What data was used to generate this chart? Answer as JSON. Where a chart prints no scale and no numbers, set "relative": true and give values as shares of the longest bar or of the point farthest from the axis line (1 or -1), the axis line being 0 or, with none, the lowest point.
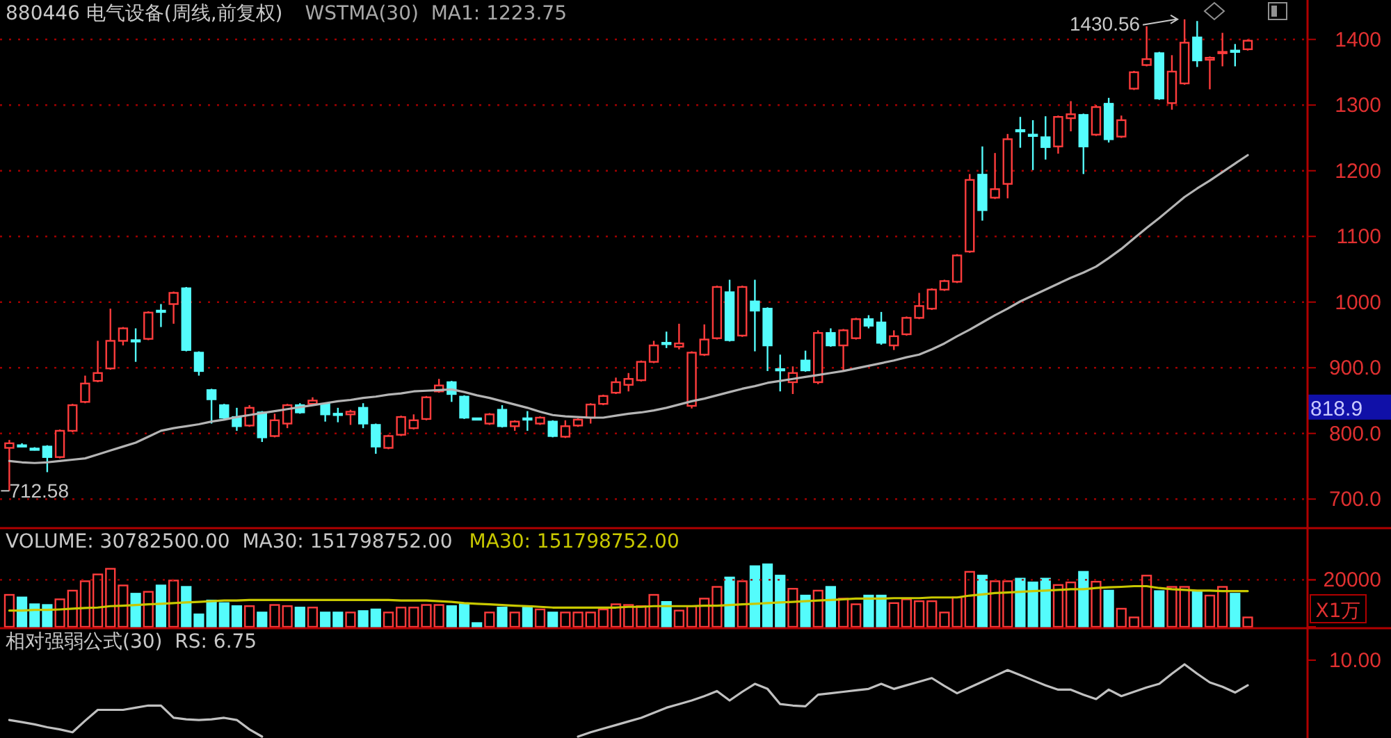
{
  "chart_data": [
    {
      "type": "candlestick",
      "title": "880446 电气设备(周线,前复权)",
      "subtitle": "WSTMA(30)  MA1: 1223.75",
      "ylim": [
        660,
        1460
      ],
      "yticks": [
        {
          "value": 700,
          "label": "700.0"
        },
        {
          "value": 800,
          "label": "800.0"
        },
        {
          "value": 900,
          "label": "900.0"
        },
        1000,
        1100,
        1200,
        1300,
        1400
      ],
      "grid": "y",
      "categories": [
        null,
        null,
        null,
        null,
        null,
        null,
        null,
        null,
        null,
        null,
        null,
        null,
        null,
        null,
        null,
        null,
        null,
        null,
        null,
        null,
        null,
        null,
        null,
        null,
        null,
        null,
        null,
        null,
        null,
        null,
        null,
        null,
        null,
        null,
        null,
        null,
        null,
        null,
        null,
        null,
        null,
        null,
        null,
        null,
        null,
        null,
        null,
        null,
        null,
        null,
        null,
        null,
        null,
        null,
        null,
        null,
        null,
        null,
        null,
        null,
        null,
        null,
        null,
        null,
        null,
        null,
        null,
        null,
        null,
        null,
        null,
        null,
        null,
        null,
        null,
        null,
        null,
        null,
        null,
        null,
        null,
        null,
        null,
        null,
        null,
        null,
        null,
        null,
        null,
        null,
        null,
        null,
        null,
        null,
        null,
        null,
        null,
        null,
        null
      ],
      "ohlc": [
        [
          778,
          790,
          712.58,
          785
        ],
        [
          782,
          785,
          779,
          781
        ],
        [
          777,
          779,
          774,
          776
        ],
        [
          780,
          782,
          741,
          764
        ],
        [
          764,
          806,
          762,
          804
        ],
        [
          804,
          845,
          802,
          843
        ],
        [
          848,
          888,
          846,
          876
        ],
        [
          880,
          941,
          878,
          892
        ],
        [
          899,
          990,
          897,
          941
        ],
        [
          941,
          962,
          934,
          960
        ],
        [
          942,
          960,
          909,
          940
        ],
        [
          944,
          986,
          942,
          984
        ],
        [
          987,
          997,
          962,
          985
        ],
        [
          997,
          1016,
          967,
          1014
        ],
        [
          1021,
          1023,
          925,
          927
        ],
        [
          923,
          925,
          888,
          895
        ],
        [
          866,
          868,
          815,
          852
        ],
        [
          843,
          845,
          820,
          824
        ],
        [
          825,
          839,
          804,
          811
        ],
        [
          812,
          843,
          810,
          839
        ],
        [
          832,
          834,
          787,
          794
        ],
        [
          796,
          830,
          794,
          820
        ],
        [
          815,
          845,
          808,
          843
        ],
        [
          843,
          846,
          830,
          832
        ],
        [
          845,
          855,
          843,
          850
        ],
        [
          845,
          847,
          818,
          829
        ],
        [
          830,
          839,
          817,
          829
        ],
        [
          829,
          836,
          813,
          833
        ],
        [
          839,
          846,
          808,
          815
        ],
        [
          813,
          815,
          769,
          780
        ],
        [
          778,
          798,
          776,
          796
        ],
        [
          798,
          827,
          796,
          825
        ],
        [
          808,
          829,
          806,
          820
        ],
        [
          822,
          857,
          820,
          855
        ],
        [
          864,
          883,
          862,
          873
        ],
        [
          878,
          880,
          848,
          860
        ],
        [
          856,
          858,
          822,
          824
        ],
        [
          823,
          824,
          821,
          822
        ],
        [
          815,
          831,
          813,
          829
        ],
        [
          836,
          843,
          809,
          811
        ],
        [
          811,
          820,
          804,
          818
        ],
        [
          823,
          834,
          804,
          822
        ],
        [
          815,
          826,
          813,
          824
        ],
        [
          818,
          820,
          794,
          796
        ],
        [
          795,
          820,
          793,
          811
        ],
        [
          812,
          823,
          810,
          821
        ],
        [
          824,
          846,
          815,
          844
        ],
        [
          845,
          859,
          843,
          857
        ],
        [
          862,
          885,
          860,
          878
        ],
        [
          874,
          892,
          864,
          883
        ],
        [
          881,
          911,
          879,
          909
        ],
        [
          909,
          941,
          907,
          934
        ],
        [
          938,
          955,
          930,
          936
        ],
        [
          932,
          967,
          928,
          937
        ],
        [
          842,
          925,
          838,
          923
        ],
        [
          920,
          966,
          918,
          943
        ],
        [
          945,
          1025,
          943,
          1023
        ],
        [
          1015,
          1034,
          940,
          942
        ],
        [
          949,
          1025,
          947,
          1023
        ],
        [
          1001,
          1034,
          925,
          987
        ],
        [
          990,
          992,
          895,
          934
        ],
        [
          898,
          920,
          864,
          896
        ],
        [
          878,
          902,
          860,
          892
        ],
        [
          911,
          926,
          894,
          896
        ],
        [
          878,
          957,
          875,
          953
        ],
        [
          953,
          960,
          932,
          934
        ],
        [
          934,
          959,
          895,
          957
        ],
        [
          945,
          976,
          943,
          974
        ],
        [
          974,
          980,
          960,
          964
        ],
        [
          969,
          985,
          935,
          938
        ],
        [
          934,
          957,
          927,
          948
        ],
        [
          951,
          978,
          949,
          976
        ],
        [
          976,
          1014,
          974,
          994
        ],
        [
          990,
          1021,
          988,
          1019
        ],
        [
          1019,
          1034,
          1017,
          1032
        ],
        [
          1031,
          1073,
          1029,
          1071
        ],
        [
          1077,
          1195,
          1075,
          1186
        ],
        [
          1194,
          1237,
          1124,
          1140
        ],
        [
          1159,
          1227,
          1157,
          1172
        ],
        [
          1180,
          1256,
          1158,
          1248
        ],
        [
          1262,
          1282,
          1235,
          1260
        ],
        [
          1255,
          1277,
          1201,
          1253
        ],
        [
          1251,
          1283,
          1217,
          1236
        ],
        [
          1237,
          1284,
          1226,
          1282
        ],
        [
          1280,
          1306,
          1260,
          1286
        ],
        [
          1285,
          1287,
          1195,
          1237
        ],
        [
          1255,
          1300,
          1253,
          1297
        ],
        [
          1302,
          1311,
          1243,
          1248
        ],
        [
          1252,
          1284,
          1250,
          1277
        ],
        [
          1325,
          1352,
          1323,
          1350
        ],
        [
          1361,
          1420,
          1359,
          1370
        ],
        [
          1379,
          1381,
          1308,
          1310
        ],
        [
          1303,
          1376,
          1293,
          1351
        ],
        [
          1333,
          1430.56,
          1331,
          1395
        ],
        [
          1403,
          1428,
          1358,
          1368
        ],
        [
          1369,
          1374,
          1324,
          1372
        ],
        [
          1379,
          1410,
          1359,
          1381
        ],
        [
          1383,
          1393,
          1359,
          1381
        ],
        [
          1385,
          1400,
          1383,
          1398
        ]
      ],
      "colors": [
        "#ff3c3c",
        "#54fcfc",
        "#54fcfc",
        "#54fcfc",
        "#ff3c3c",
        "#ff3c3c",
        "#ff3c3c",
        "#ff3c3c",
        "#ff3c3c",
        "#ff3c3c",
        "#54fcfc",
        "#ff3c3c",
        "#54fcfc",
        "#ff3c3c",
        "#54fcfc",
        "#54fcfc",
        "#54fcfc",
        "#54fcfc",
        "#54fcfc",
        "#ff3c3c",
        "#54fcfc",
        "#ff3c3c",
        "#ff3c3c",
        "#54fcfc",
        "#ff3c3c",
        "#54fcfc",
        "#54fcfc",
        "#ff3c3c",
        "#54fcfc",
        "#54fcfc",
        "#ff3c3c",
        "#ff3c3c",
        "#ff3c3c",
        "#ff3c3c",
        "#ff3c3c",
        "#54fcfc",
        "#54fcfc",
        "#54fcfc",
        "#ff3c3c",
        "#54fcfc",
        "#ff3c3c",
        "#54fcfc",
        "#ff3c3c",
        "#54fcfc",
        "#ff3c3c",
        "#ff3c3c",
        "#ff3c3c",
        "#ff3c3c",
        "#ff3c3c",
        "#ff3c3c",
        "#ff3c3c",
        "#ff3c3c",
        "#54fcfc",
        "#ff3c3c",
        "#ff3c3c",
        "#ff3c3c",
        "#ff3c3c",
        "#54fcfc",
        "#ff3c3c",
        "#54fcfc",
        "#54fcfc",
        "#54fcfc",
        "#ff3c3c",
        "#54fcfc",
        "#ff3c3c",
        "#54fcfc",
        "#ff3c3c",
        "#ff3c3c",
        "#54fcfc",
        "#54fcfc",
        "#ff3c3c",
        "#ff3c3c",
        "#ff3c3c",
        "#ff3c3c",
        "#ff3c3c",
        "#ff3c3c",
        "#ff3c3c",
        "#54fcfc",
        "#ff3c3c",
        "#ff3c3c",
        "#54fcfc",
        "#54fcfc",
        "#54fcfc",
        "#ff3c3c",
        "#ff3c3c",
        "#54fcfc",
        "#ff3c3c",
        "#54fcfc",
        "#ff3c3c",
        "#ff3c3c",
        "#ff3c3c",
        "#54fcfc",
        "#ff3c3c",
        "#ff3c3c",
        "#54fcfc",
        "#ff3c3c",
        "#ff3c3c",
        "#54fcfc",
        "#ff3c3c"
      ],
      "series": [
        {
          "type": "line",
          "color": "#b4b4b4",
          "values": [
            758,
            756,
            755,
            756,
            758,
            760,
            762,
            768,
            774,
            780,
            786,
            795,
            804,
            808,
            811,
            814,
            818,
            821,
            825,
            828,
            831,
            834,
            837,
            840,
            843,
            846,
            849,
            851,
            854,
            856,
            859,
            861,
            864,
            865,
            866,
            867,
            863,
            858,
            854,
            849,
            844,
            839,
            833,
            828,
            826,
            825,
            824,
            824,
            827,
            830,
            832,
            835,
            839,
            844,
            849,
            853,
            858,
            863,
            868,
            872,
            877,
            880,
            883,
            886,
            889,
            892,
            895,
            899,
            903,
            907,
            911,
            916,
            920,
            928,
            937,
            948,
            958,
            969,
            980,
            990,
            1001,
            1010,
            1019,
            1028,
            1037,
            1045,
            1054,
            1067,
            1081,
            1097,
            1113,
            1128,
            1144,
            1160,
            1173,
            1185,
            1198,
            1211,
            1223.75
          ]
        }
      ],
      "annotations": [
        "1430.56",
        "712.58",
        "818.9"
      ]
    },
    {
      "type": "bar",
      "title": "VOLUME: 30782500.00  MA30: 151798752.00",
      "legend": "top",
      "ylim": [
        0,
        42000
      ],
      "yticks": [
        {
          "value": 0,
          "label": null
        },
        20000
      ],
      "ref_lines": [
        {
          "axis": "y",
          "value": 20000,
          "line_style": "dotted",
          "color": "#a00000"
        }
      ],
      "categories": [
        null,
        null,
        null,
        null,
        null,
        null,
        null,
        null,
        null,
        null,
        null,
        null,
        null,
        null,
        null,
        null,
        null,
        null,
        null,
        null,
        null,
        null,
        null,
        null,
        null,
        null,
        null,
        null,
        null,
        null,
        null,
        null,
        null,
        null,
        null,
        null,
        null,
        null,
        null,
        null,
        null,
        null,
        null,
        null,
        null,
        null,
        null,
        null,
        null,
        null,
        null,
        null,
        null,
        null,
        null,
        null,
        null,
        null,
        null,
        null,
        null,
        null,
        null,
        null,
        null,
        null,
        null,
        null,
        null,
        null,
        null,
        null,
        null,
        null,
        null,
        null,
        null,
        null,
        null,
        null,
        null,
        null,
        null,
        null,
        null,
        null,
        null,
        null,
        null,
        null,
        null,
        null,
        null,
        null,
        null,
        null,
        null,
        null,
        null
      ],
      "values": [
        13600,
        12500,
        9600,
        9300,
        11700,
        15400,
        19400,
        22300,
        24700,
        17600,
        14100,
        14900,
        17600,
        19700,
        17000,
        5300,
        11200,
        10100,
        8800,
        8800,
        6100,
        9300,
        8800,
        8200,
        8200,
        6100,
        6100,
        6100,
        6700,
        7400,
        6100,
        8200,
        8200,
        9300,
        9300,
        8800,
        9600,
        1600,
        6100,
        8200,
        6100,
        8200,
        7400,
        6100,
        6100,
        6100,
        6100,
        7400,
        9600,
        9300,
        8800,
        13600,
        10600,
        6900,
        8800,
        12000,
        17000,
        21000,
        19400,
        25800,
        26600,
        21800,
        16200,
        13300,
        15400,
        17000,
        12000,
        9600,
        13300,
        13300,
        10100,
        11700,
        10900,
        10900,
        6100,
        12500,
        23400,
        21800,
        19400,
        19400,
        20500,
        18900,
        20500,
        17800,
        18900,
        23400,
        19200,
        15400,
        7700,
        4000,
        21800,
        15200,
        17000,
        17000,
        15200,
        13300,
        17000,
        14100,
        4000
      ],
      "colors": [
        "#ff3c3c",
        "#54fcfc",
        "#54fcfc",
        "#54fcfc",
        "#ff3c3c",
        "#ff3c3c",
        "#ff3c3c",
        "#ff3c3c",
        "#ff3c3c",
        "#ff3c3c",
        "#54fcfc",
        "#ff3c3c",
        "#54fcfc",
        "#ff3c3c",
        "#54fcfc",
        "#54fcfc",
        "#54fcfc",
        "#54fcfc",
        "#54fcfc",
        "#ff3c3c",
        "#54fcfc",
        "#ff3c3c",
        "#ff3c3c",
        "#54fcfc",
        "#ff3c3c",
        "#54fcfc",
        "#54fcfc",
        "#ff3c3c",
        "#54fcfc",
        "#54fcfc",
        "#ff3c3c",
        "#ff3c3c",
        "#ff3c3c",
        "#ff3c3c",
        "#ff3c3c",
        "#54fcfc",
        "#54fcfc",
        "#54fcfc",
        "#ff3c3c",
        "#54fcfc",
        "#ff3c3c",
        "#54fcfc",
        "#ff3c3c",
        "#54fcfc",
        "#ff3c3c",
        "#ff3c3c",
        "#ff3c3c",
        "#ff3c3c",
        "#ff3c3c",
        "#ff3c3c",
        "#ff3c3c",
        "#ff3c3c",
        "#54fcfc",
        "#ff3c3c",
        "#ff3c3c",
        "#ff3c3c",
        "#ff3c3c",
        "#54fcfc",
        "#ff3c3c",
        "#54fcfc",
        "#54fcfc",
        "#54fcfc",
        "#ff3c3c",
        "#54fcfc",
        "#ff3c3c",
        "#54fcfc",
        "#ff3c3c",
        "#ff3c3c",
        "#54fcfc",
        "#54fcfc",
        "#ff3c3c",
        "#ff3c3c",
        "#ff3c3c",
        "#ff3c3c",
        "#ff3c3c",
        "#ff3c3c",
        "#ff3c3c",
        "#54fcfc",
        "#ff3c3c",
        "#ff3c3c",
        "#54fcfc",
        "#54fcfc",
        "#54fcfc",
        "#ff3c3c",
        "#ff3c3c",
        "#54fcfc",
        "#ff3c3c",
        "#54fcfc",
        "#ff3c3c",
        "#ff3c3c",
        "#ff3c3c",
        "#54fcfc",
        "#ff3c3c",
        "#ff3c3c",
        "#54fcfc",
        "#ff3c3c",
        "#ff3c3c",
        "#54fcfc",
        "#ff3c3c"
      ],
      "series": [
        {
          "type": "line",
          "name": "MA30: 151798752.00",
          "color": "#c8c800",
          "values": [
            6900,
            6900,
            7200,
            7200,
            7400,
            7700,
            8000,
            8200,
            8800,
            9000,
            9300,
            9600,
            9800,
            10100,
            10400,
            10600,
            10900,
            11200,
            11200,
            11400,
            11400,
            11400,
            11400,
            11400,
            11400,
            11400,
            11400,
            11400,
            11400,
            11400,
            11400,
            11200,
            11200,
            11200,
            10900,
            10600,
            10100,
            9800,
            9600,
            9300,
            9000,
            8800,
            8500,
            8200,
            8200,
            8200,
            8200,
            8200,
            8200,
            8500,
            8500,
            8800,
            8800,
            8800,
            8800,
            9000,
            9000,
            9300,
            9600,
            9800,
            10100,
            10400,
            10600,
            10900,
            11200,
            11400,
            11700,
            12000,
            12000,
            12000,
            12200,
            12200,
            12200,
            12500,
            12500,
            12500,
            13300,
            13800,
            14400,
            14600,
            14900,
            15200,
            15400,
            15700,
            16000,
            16000,
            16500,
            16800,
            17000,
            17300,
            17300,
            16500,
            16000,
            15700,
            15400,
            15400,
            15200,
            15200,
            15200
          ]
        }
      ],
      "annotations": [
        "X1万"
      ]
    },
    {
      "type": "line",
      "relative": true,
      "title": "相对强弱公式(30)  RS: 6.75",
      "categories": [
        null,
        null,
        null,
        null,
        null,
        null,
        null,
        null,
        null,
        null,
        null,
        null,
        null,
        null,
        null,
        null,
        null,
        null,
        null,
        null,
        null,
        null,
        null,
        null,
        null,
        null,
        null,
        null,
        null,
        null,
        null,
        null,
        null,
        null,
        null,
        null,
        null,
        null,
        null,
        null,
        null,
        null,
        null,
        null,
        null,
        null,
        null,
        null,
        null,
        null,
        null,
        null,
        null,
        null,
        null,
        null,
        null,
        null,
        null,
        null,
        null,
        null,
        null,
        null,
        null,
        null,
        null,
        null,
        null,
        null,
        null,
        null,
        null,
        null,
        null,
        null,
        null,
        null,
        null,
        null,
        null,
        null,
        null,
        null,
        null,
        null,
        null,
        null,
        null,
        null,
        null,
        null,
        null,
        null,
        null,
        null,
        null,
        null,
        null
      ],
      "series": [
        {
          "color": "#c0c0c0",
          "values": [
            0.23,
            0.2,
            0.17,
            0.13,
            0.1,
            0.06,
            0.22,
            0.37,
            0.37,
            0.37,
            0.4,
            0.43,
            0.43,
            0.26,
            0.24,
            0.23,
            0.24,
            0.26,
            0.23,
            0.1,
            0,
            null,
            null,
            null,
            null,
            null,
            null,
            null,
            null,
            null,
            null,
            null,
            null,
            null,
            null,
            null,
            null,
            null,
            null,
            null,
            null,
            null,
            null,
            null,
            null,
            0,
            0.06,
            0.11,
            0.16,
            0.21,
            0.26,
            0.33,
            0.4,
            0.45,
            0.5,
            0.56,
            0.63,
            0.5,
            0.62,
            0.73,
            0.66,
            0.45,
            0.43,
            0.42,
            0.58,
            0.6,
            0.62,
            0.64,
            0.66,
            0.73,
            0.66,
            0.71,
            0.76,
            0.81,
            0.7,
            0.6,
            0.68,
            0.76,
            0.84,
            0.92,
            0.85,
            0.78,
            0.71,
            0.65,
            0.65,
            0.58,
            0.52,
            0.65,
            0.56,
            0.62,
            0.68,
            0.73,
            0.87,
            1,
            0.87,
            0.75,
            0.69,
            0.61,
            0.71
          ]
        }
      ],
      "annotations": [
        "10.00"
      ]
    }
  ]
}
